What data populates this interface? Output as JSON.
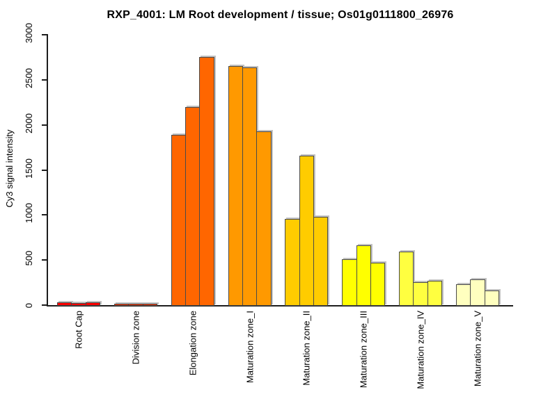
{
  "title": "RXP_4001: LM Root development / tissue; Os01g0111800_26976",
  "colors": {
    "axis": "#1c1c1c",
    "text": "#000000",
    "bar_border": "#4a4a4a",
    "bar_shadow": "#c2c2c2",
    "background": "#ffffff"
  },
  "chart_data": {
    "type": "bar",
    "title": "RXP_4001: LM Root development / tissue; Os01g0111800_26976",
    "xlabel": "",
    "ylabel": "Cy3 signal intensity",
    "ylim": [
      0,
      3000
    ],
    "yticks": [
      0,
      500,
      1000,
      1500,
      2000,
      2500,
      3000
    ],
    "grid": false,
    "legend_position": "none",
    "bars_per_group": 3,
    "groups": [
      {
        "label": "Root Cap",
        "color": "#FF0000",
        "values": [
          22,
          13,
          22
        ]
      },
      {
        "label": "Division zone",
        "color": "#FF3300",
        "values": [
          6,
          5,
          6
        ]
      },
      {
        "label": "Elongation zone",
        "color": "#FF6600",
        "values": [
          1885,
          2190,
          2750
        ]
      },
      {
        "label": "Maturation zone_I",
        "color": "#FF9900",
        "values": [
          2650,
          2630,
          1920
        ]
      },
      {
        "label": "Maturation zone_II",
        "color": "#FFCC00",
        "values": [
          950,
          1650,
          970
        ]
      },
      {
        "label": "Maturation zone_III",
        "color": "#FFFF00",
        "values": [
          505,
          655,
          465
        ]
      },
      {
        "label": "Maturation zone_IV",
        "color": "#FFFF40",
        "values": [
          590,
          250,
          265
        ]
      },
      {
        "label": "Maturation zone_V",
        "color": "#FFFFBF",
        "values": [
          225,
          280,
          155
        ]
      }
    ]
  }
}
